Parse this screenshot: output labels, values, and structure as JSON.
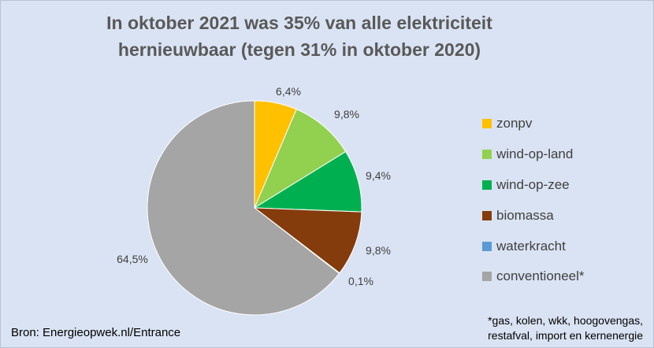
{
  "chart_data": {
    "type": "pie",
    "title_lines": [
      "In oktober 2021 was 35% van alle elektriciteit",
      "hernieuwbaar (tegen 31% in oktober 2020)"
    ],
    "categories": [
      "zonpv",
      "wind-op-land",
      "wind-op-zee",
      "biomassa",
      "waterkracht",
      "conventioneel*"
    ],
    "values": [
      6.4,
      9.8,
      9.4,
      9.8,
      0.1,
      64.5
    ],
    "data_labels": [
      "6,4%",
      "9,8%",
      "9,4%",
      "9,8%",
      "0,1%",
      "64,5%"
    ],
    "colors": [
      "#ffc000",
      "#92d050",
      "#00b050",
      "#843c0c",
      "#5b9bd5",
      "#a5a5a5"
    ],
    "legend_position": "right",
    "unit": "%"
  },
  "source": "Bron: Energieopwek.nl/Entrance",
  "footnote_lines": [
    "*gas, kolen, wkk, hoogovengas,",
    "restafval, import en kernenergie"
  ]
}
